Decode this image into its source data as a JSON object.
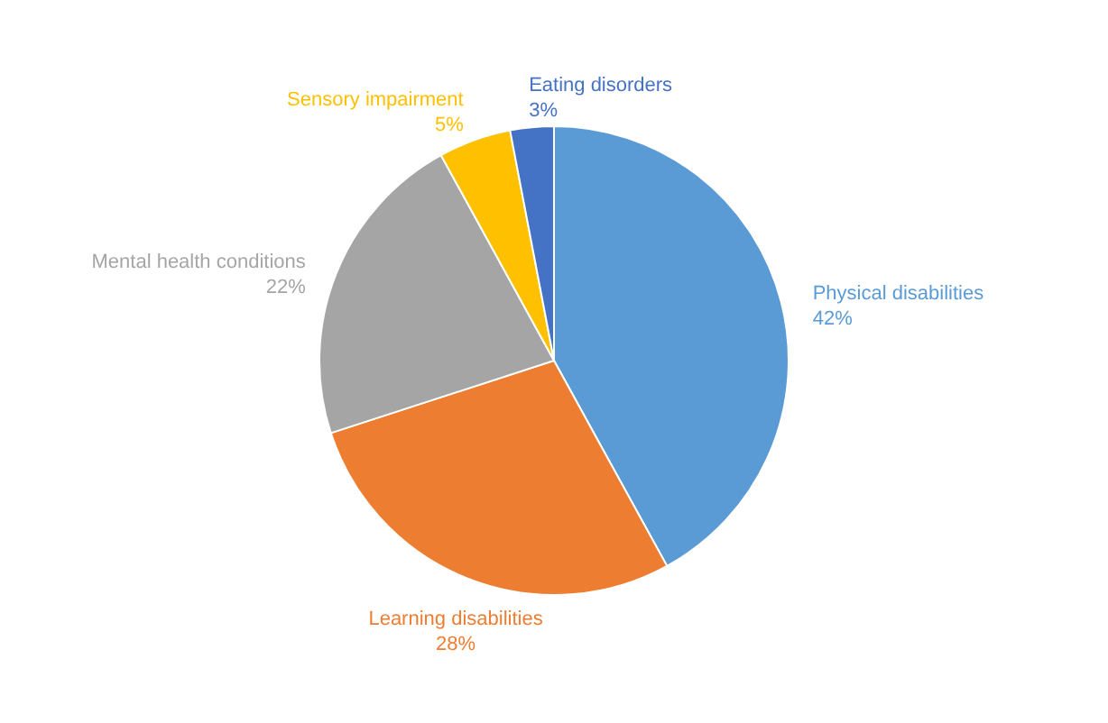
{
  "chart_data": {
    "type": "pie",
    "categories": [
      "Physical disabilities",
      "Learning disabilities",
      "Mental health conditions",
      "Sensory impairment",
      "Eating disorders"
    ],
    "values": [
      42,
      28,
      22,
      5,
      3
    ],
    "value_labels": [
      "42%",
      "28%",
      "22%",
      "5%",
      "3%"
    ],
    "colors": [
      "#5b9bd5",
      "#ed7d31",
      "#a5a5a5",
      "#ffc000",
      "#4472c4"
    ],
    "legend": false
  }
}
